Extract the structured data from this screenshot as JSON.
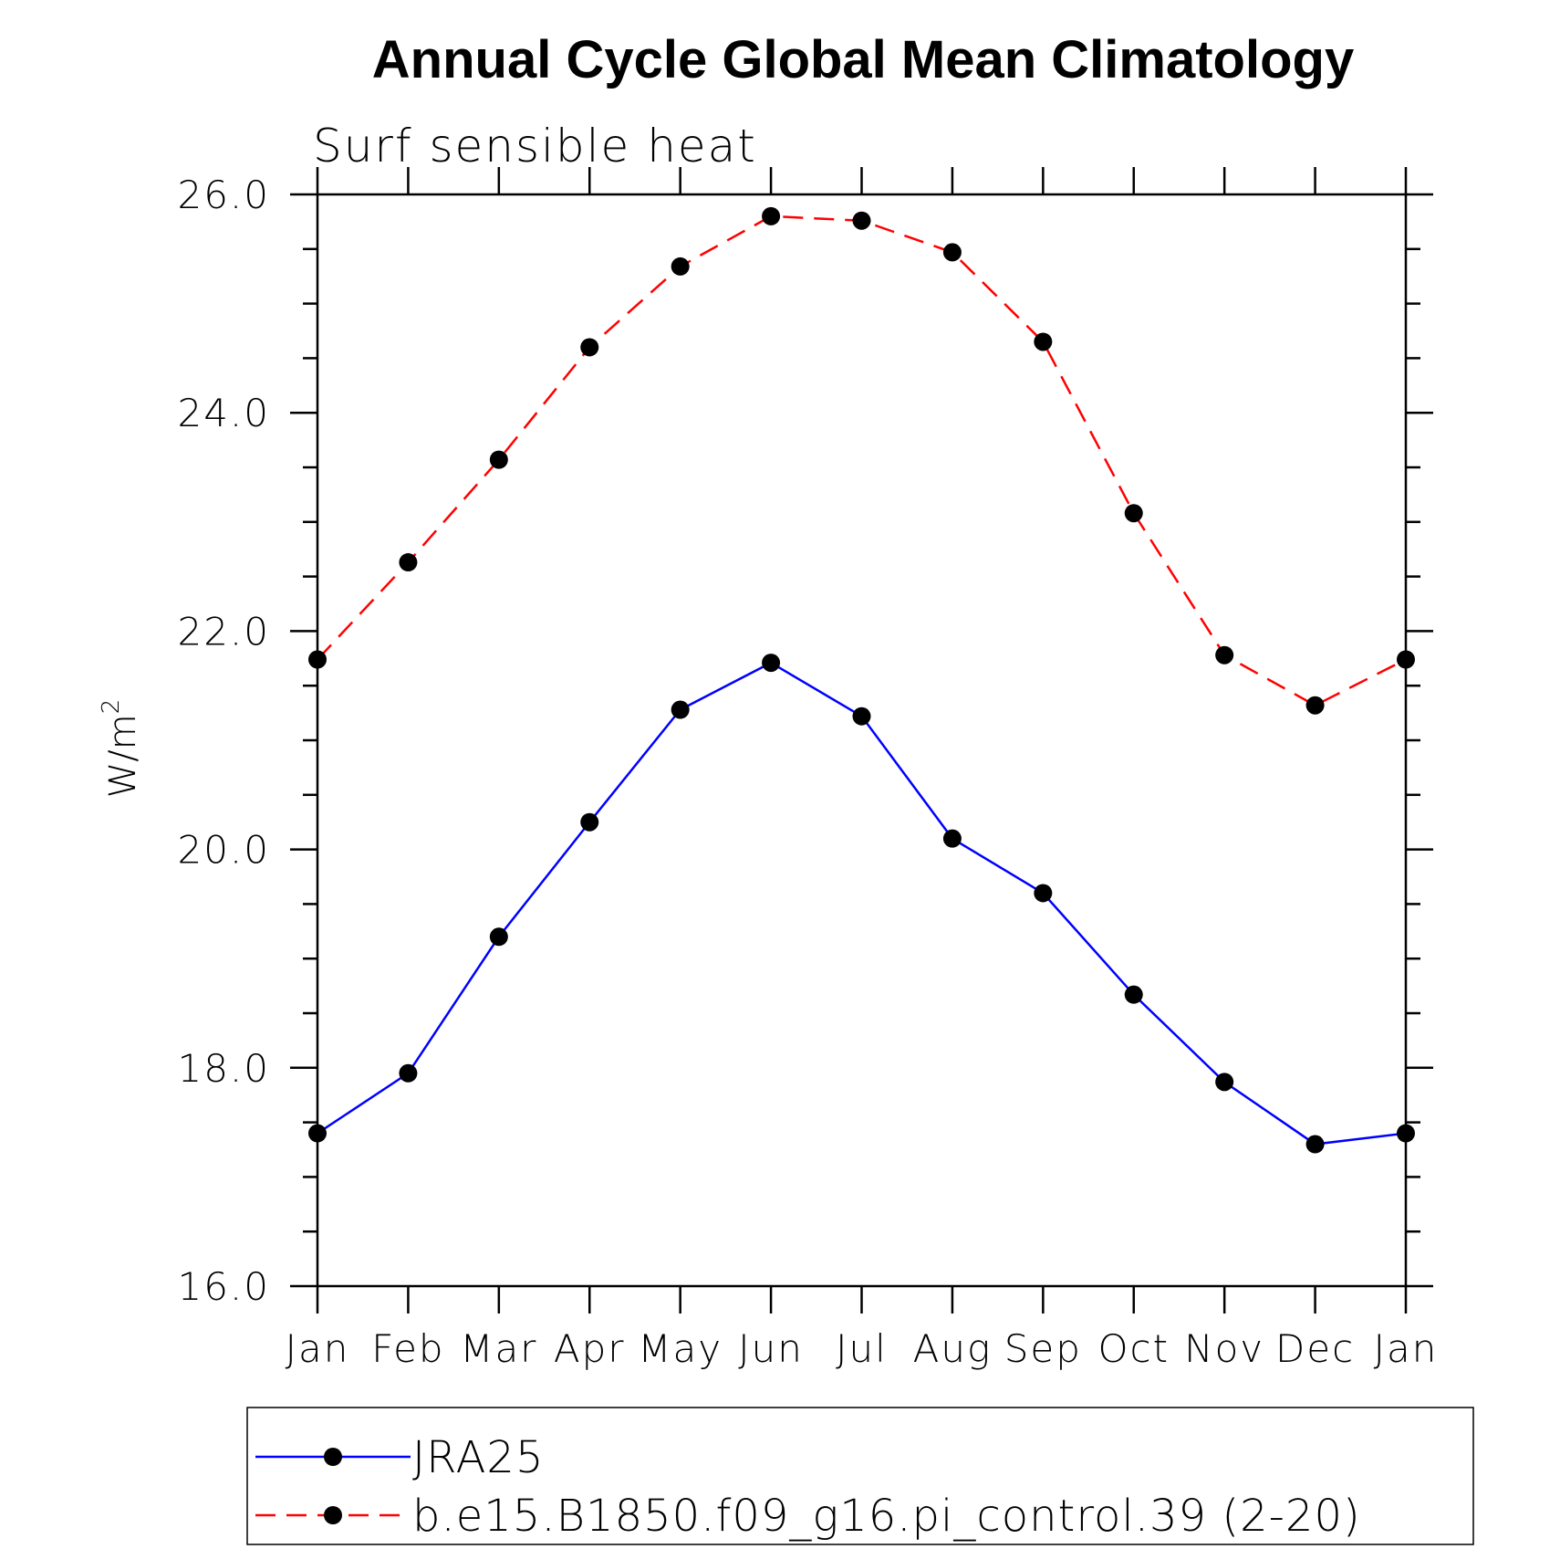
{
  "chart_data": {
    "type": "line",
    "title": "Annual Cycle Global Mean Climatology",
    "subtitle": "Surf sensible heat",
    "ylabel": "W/m",
    "ylabel_sup": "2",
    "xlabel": "",
    "categories": [
      "Jan",
      "Feb",
      "Mar",
      "Apr",
      "May",
      "Jun",
      "Jul",
      "Aug",
      "Sep",
      "Oct",
      "Nov",
      "Dec",
      "Jan"
    ],
    "ylim": [
      16.0,
      26.0
    ],
    "yticks": [
      "16.0",
      "18.0",
      "20.0",
      "22.0",
      "24.0",
      "26.0"
    ],
    "grid": false,
    "legend_position": "bottom",
    "series": [
      {
        "name": "JRA25",
        "color": "#0000ff",
        "line_style": "solid",
        "marker": "filled-circle",
        "values": [
          17.4,
          17.95,
          19.2,
          20.25,
          21.28,
          21.71,
          21.22,
          20.1,
          19.6,
          18.67,
          17.87,
          17.3,
          17.4
        ]
      },
      {
        "name": "b.e15.B1850.f09_g16.pi_control.39 (2-20)",
        "color": "#ff0000",
        "line_style": "dashed",
        "marker": "filled-circle",
        "values": [
          21.74,
          22.63,
          23.57,
          24.6,
          25.34,
          25.8,
          25.76,
          25.47,
          24.65,
          23.08,
          21.78,
          21.32,
          21.74
        ]
      }
    ]
  }
}
